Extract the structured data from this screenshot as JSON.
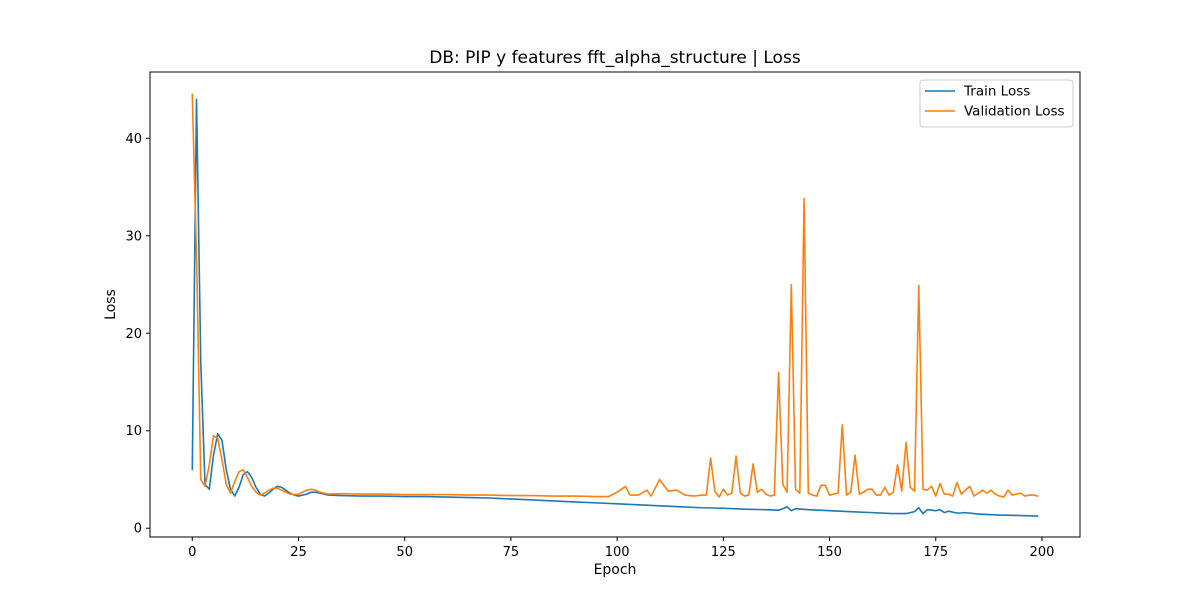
{
  "chart_data": {
    "type": "line",
    "title": "DB: PIP y features fft_alpha_structure | Loss",
    "xlabel": "Epoch",
    "ylabel": "Loss",
    "xlim": [
      -9.95,
      208.95
    ],
    "ylim": [
      -0.9,
      46.8
    ],
    "xticks": [
      0,
      25,
      50,
      75,
      100,
      125,
      150,
      175,
      200
    ],
    "yticks": [
      0,
      10,
      20,
      30,
      40
    ],
    "grid": false,
    "legend": "upper-right",
    "series": [
      {
        "name": "Train Loss",
        "color": "#1f77b4",
        "x": [
          0,
          1,
          2,
          3,
          4,
          5,
          6,
          7,
          8,
          9,
          10,
          11,
          12,
          13,
          14,
          15,
          16,
          17,
          18,
          19,
          20,
          21,
          22,
          23,
          24,
          25,
          26,
          27,
          28,
          29,
          30,
          32,
          35,
          40,
          45,
          50,
          55,
          60,
          65,
          70,
          75,
          80,
          85,
          90,
          95,
          100,
          105,
          110,
          115,
          120,
          125,
          130,
          135,
          138,
          139,
          140,
          141,
          142,
          145,
          150,
          155,
          160,
          165,
          168,
          170,
          171,
          172,
          173,
          175,
          176,
          177,
          178,
          180,
          182,
          185,
          190,
          195,
          199
        ],
        "y": [
          6.0,
          44.0,
          17.0,
          4.5,
          4.0,
          7.5,
          9.7,
          9.0,
          6.0,
          4.0,
          3.3,
          4.2,
          5.5,
          5.8,
          5.2,
          4.2,
          3.5,
          3.3,
          3.6,
          4.0,
          4.3,
          4.2,
          3.9,
          3.6,
          3.4,
          3.3,
          3.4,
          3.5,
          3.7,
          3.7,
          3.6,
          3.4,
          3.35,
          3.3,
          3.3,
          3.25,
          3.25,
          3.2,
          3.15,
          3.1,
          3.0,
          2.9,
          2.8,
          2.7,
          2.6,
          2.5,
          2.4,
          2.3,
          2.2,
          2.1,
          2.05,
          1.95,
          1.9,
          1.85,
          2.0,
          2.2,
          1.8,
          2.0,
          1.9,
          1.8,
          1.7,
          1.6,
          1.5,
          1.5,
          1.7,
          2.1,
          1.5,
          1.9,
          1.8,
          1.9,
          1.6,
          1.75,
          1.55,
          1.6,
          1.45,
          1.35,
          1.3,
          1.25
        ]
      },
      {
        "name": "Validation Loss",
        "color": "#ff7f0e",
        "x": [
          0,
          1,
          2,
          3,
          4,
          5,
          6,
          7,
          8,
          9,
          10,
          11,
          12,
          13,
          14,
          15,
          16,
          17,
          18,
          19,
          20,
          21,
          22,
          23,
          24,
          25,
          26,
          27,
          28,
          29,
          30,
          32,
          35,
          40,
          45,
          50,
          55,
          60,
          65,
          70,
          75,
          80,
          85,
          90,
          95,
          98,
          100,
          102,
          103,
          105,
          107,
          108,
          110,
          112,
          114,
          116,
          118,
          120,
          121,
          122,
          123,
          124,
          125,
          126,
          127,
          128,
          129,
          130,
          131,
          132,
          133,
          134,
          135,
          136,
          137,
          138,
          139,
          140,
          141,
          142,
          143,
          144,
          145,
          146,
          147,
          148,
          149,
          150,
          151,
          152,
          153,
          154,
          155,
          156,
          157,
          158,
          159,
          160,
          161,
          162,
          163,
          164,
          165,
          166,
          167,
          168,
          169,
          170,
          171,
          172,
          173,
          174,
          175,
          176,
          177,
          178,
          179,
          180,
          181,
          182,
          183,
          184,
          185,
          186,
          187,
          188,
          189,
          190,
          191,
          192,
          193,
          194,
          195,
          196,
          197,
          198,
          199
        ],
        "y": [
          44.5,
          28.0,
          5.0,
          4.3,
          6.5,
          9.5,
          9.2,
          7.0,
          4.5,
          3.6,
          4.8,
          5.8,
          6.0,
          5.2,
          4.3,
          3.7,
          3.4,
          3.6,
          3.9,
          4.1,
          4.1,
          3.9,
          3.7,
          3.5,
          3.45,
          3.5,
          3.7,
          3.9,
          4.0,
          3.9,
          3.7,
          3.5,
          3.55,
          3.5,
          3.5,
          3.45,
          3.45,
          3.45,
          3.4,
          3.4,
          3.35,
          3.35,
          3.3,
          3.3,
          3.25,
          3.25,
          3.7,
          4.3,
          3.4,
          3.4,
          3.9,
          3.3,
          5.0,
          3.8,
          3.9,
          3.4,
          3.3,
          3.4,
          3.4,
          7.2,
          3.8,
          3.2,
          4.0,
          3.4,
          3.6,
          7.4,
          3.6,
          3.3,
          3.4,
          6.6,
          3.7,
          4.0,
          3.5,
          3.3,
          3.4,
          16.0,
          4.5,
          3.7,
          25.0,
          4.0,
          3.6,
          33.8,
          3.6,
          3.4,
          3.3,
          4.4,
          4.4,
          3.4,
          3.5,
          3.6,
          10.6,
          3.4,
          3.7,
          7.5,
          3.5,
          3.7,
          4.0,
          4.0,
          3.4,
          3.4,
          4.2,
          3.4,
          3.7,
          6.5,
          3.8,
          8.8,
          4.2,
          3.8,
          24.9,
          4.0,
          3.9,
          4.3,
          3.3,
          4.6,
          3.5,
          3.5,
          3.3,
          4.7,
          3.5,
          3.9,
          4.3,
          3.3,
          3.6,
          3.9,
          3.6,
          3.9,
          3.5,
          3.3,
          3.2,
          3.9,
          3.4,
          3.5,
          3.6,
          3.3,
          3.4,
          3.4,
          3.3
        ]
      }
    ]
  }
}
